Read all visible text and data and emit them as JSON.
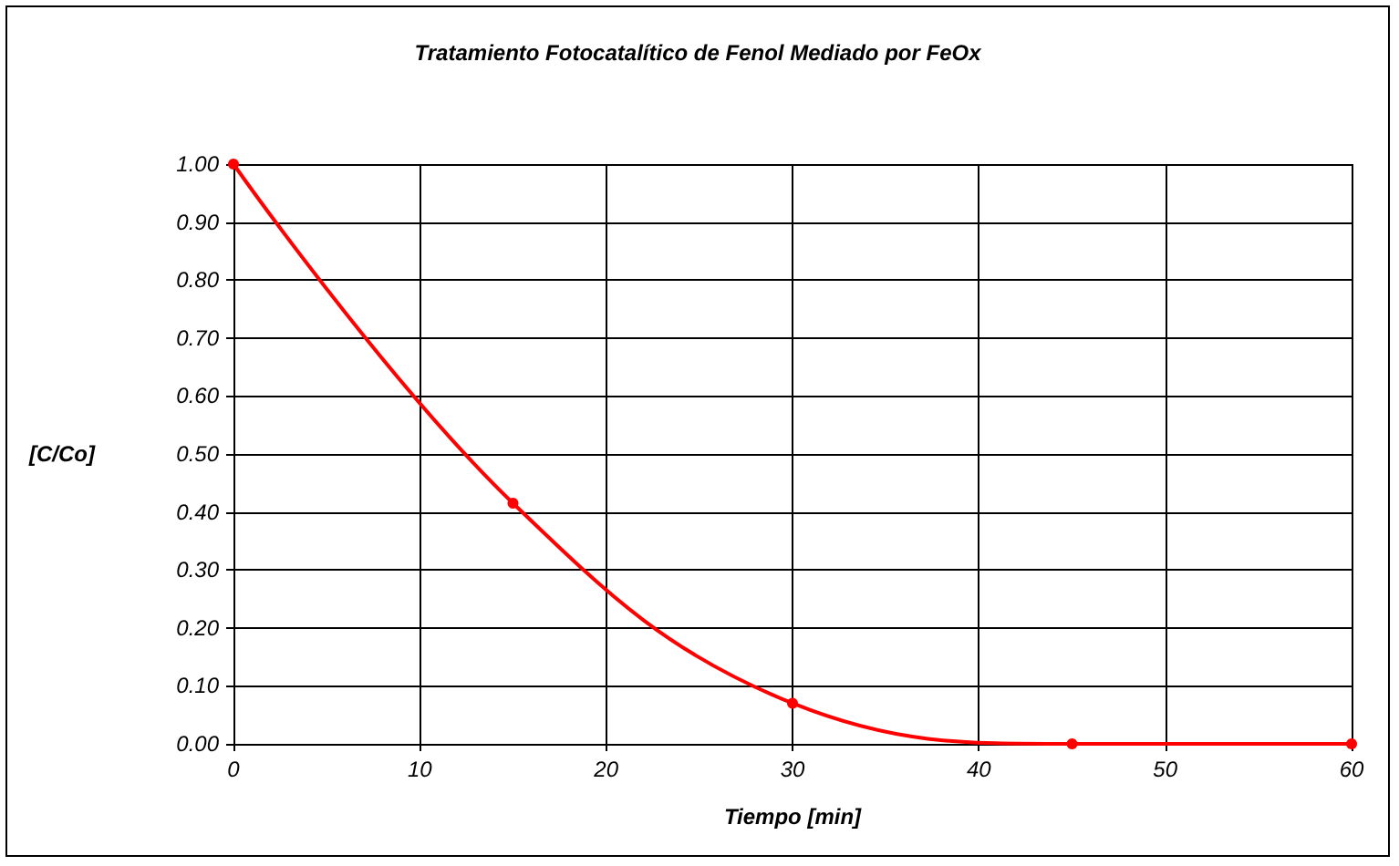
{
  "chart_data": {
    "type": "line",
    "title": "Tratamiento Fotocatalítico de Fenol Mediado por FeOx",
    "xlabel": "Tiempo [min]",
    "ylabel": "[C/Co]",
    "x": [
      0,
      15,
      30,
      45,
      60
    ],
    "series": [
      {
        "color": "#ff0000",
        "values": [
          1.0,
          0.415,
          0.07,
          0.0,
          0.0
        ]
      }
    ],
    "xlim": [
      0,
      60
    ],
    "xticks": [
      0,
      10,
      20,
      30,
      40,
      50,
      60
    ],
    "ylim": [
      0,
      1
    ],
    "yticks": [
      {
        "value": 0,
        "label": "0.00"
      },
      {
        "value": 0.1,
        "label": "0.10"
      },
      {
        "value": 0.2,
        "label": "0.20"
      },
      {
        "value": 0.3,
        "label": "0.30"
      },
      {
        "value": 0.4,
        "label": "0.40"
      },
      {
        "value": 0.5,
        "label": "0.50"
      },
      {
        "value": 0.6,
        "label": "0.60"
      },
      {
        "value": 0.7,
        "label": "0.70"
      },
      {
        "value": 0.8,
        "label": "0.80"
      },
      {
        "value": 0.9,
        "label": "0.90"
      },
      {
        "value": 1,
        "label": "1.00"
      }
    ],
    "grid": true,
    "marker": "circle",
    "line_style": "solid"
  }
}
